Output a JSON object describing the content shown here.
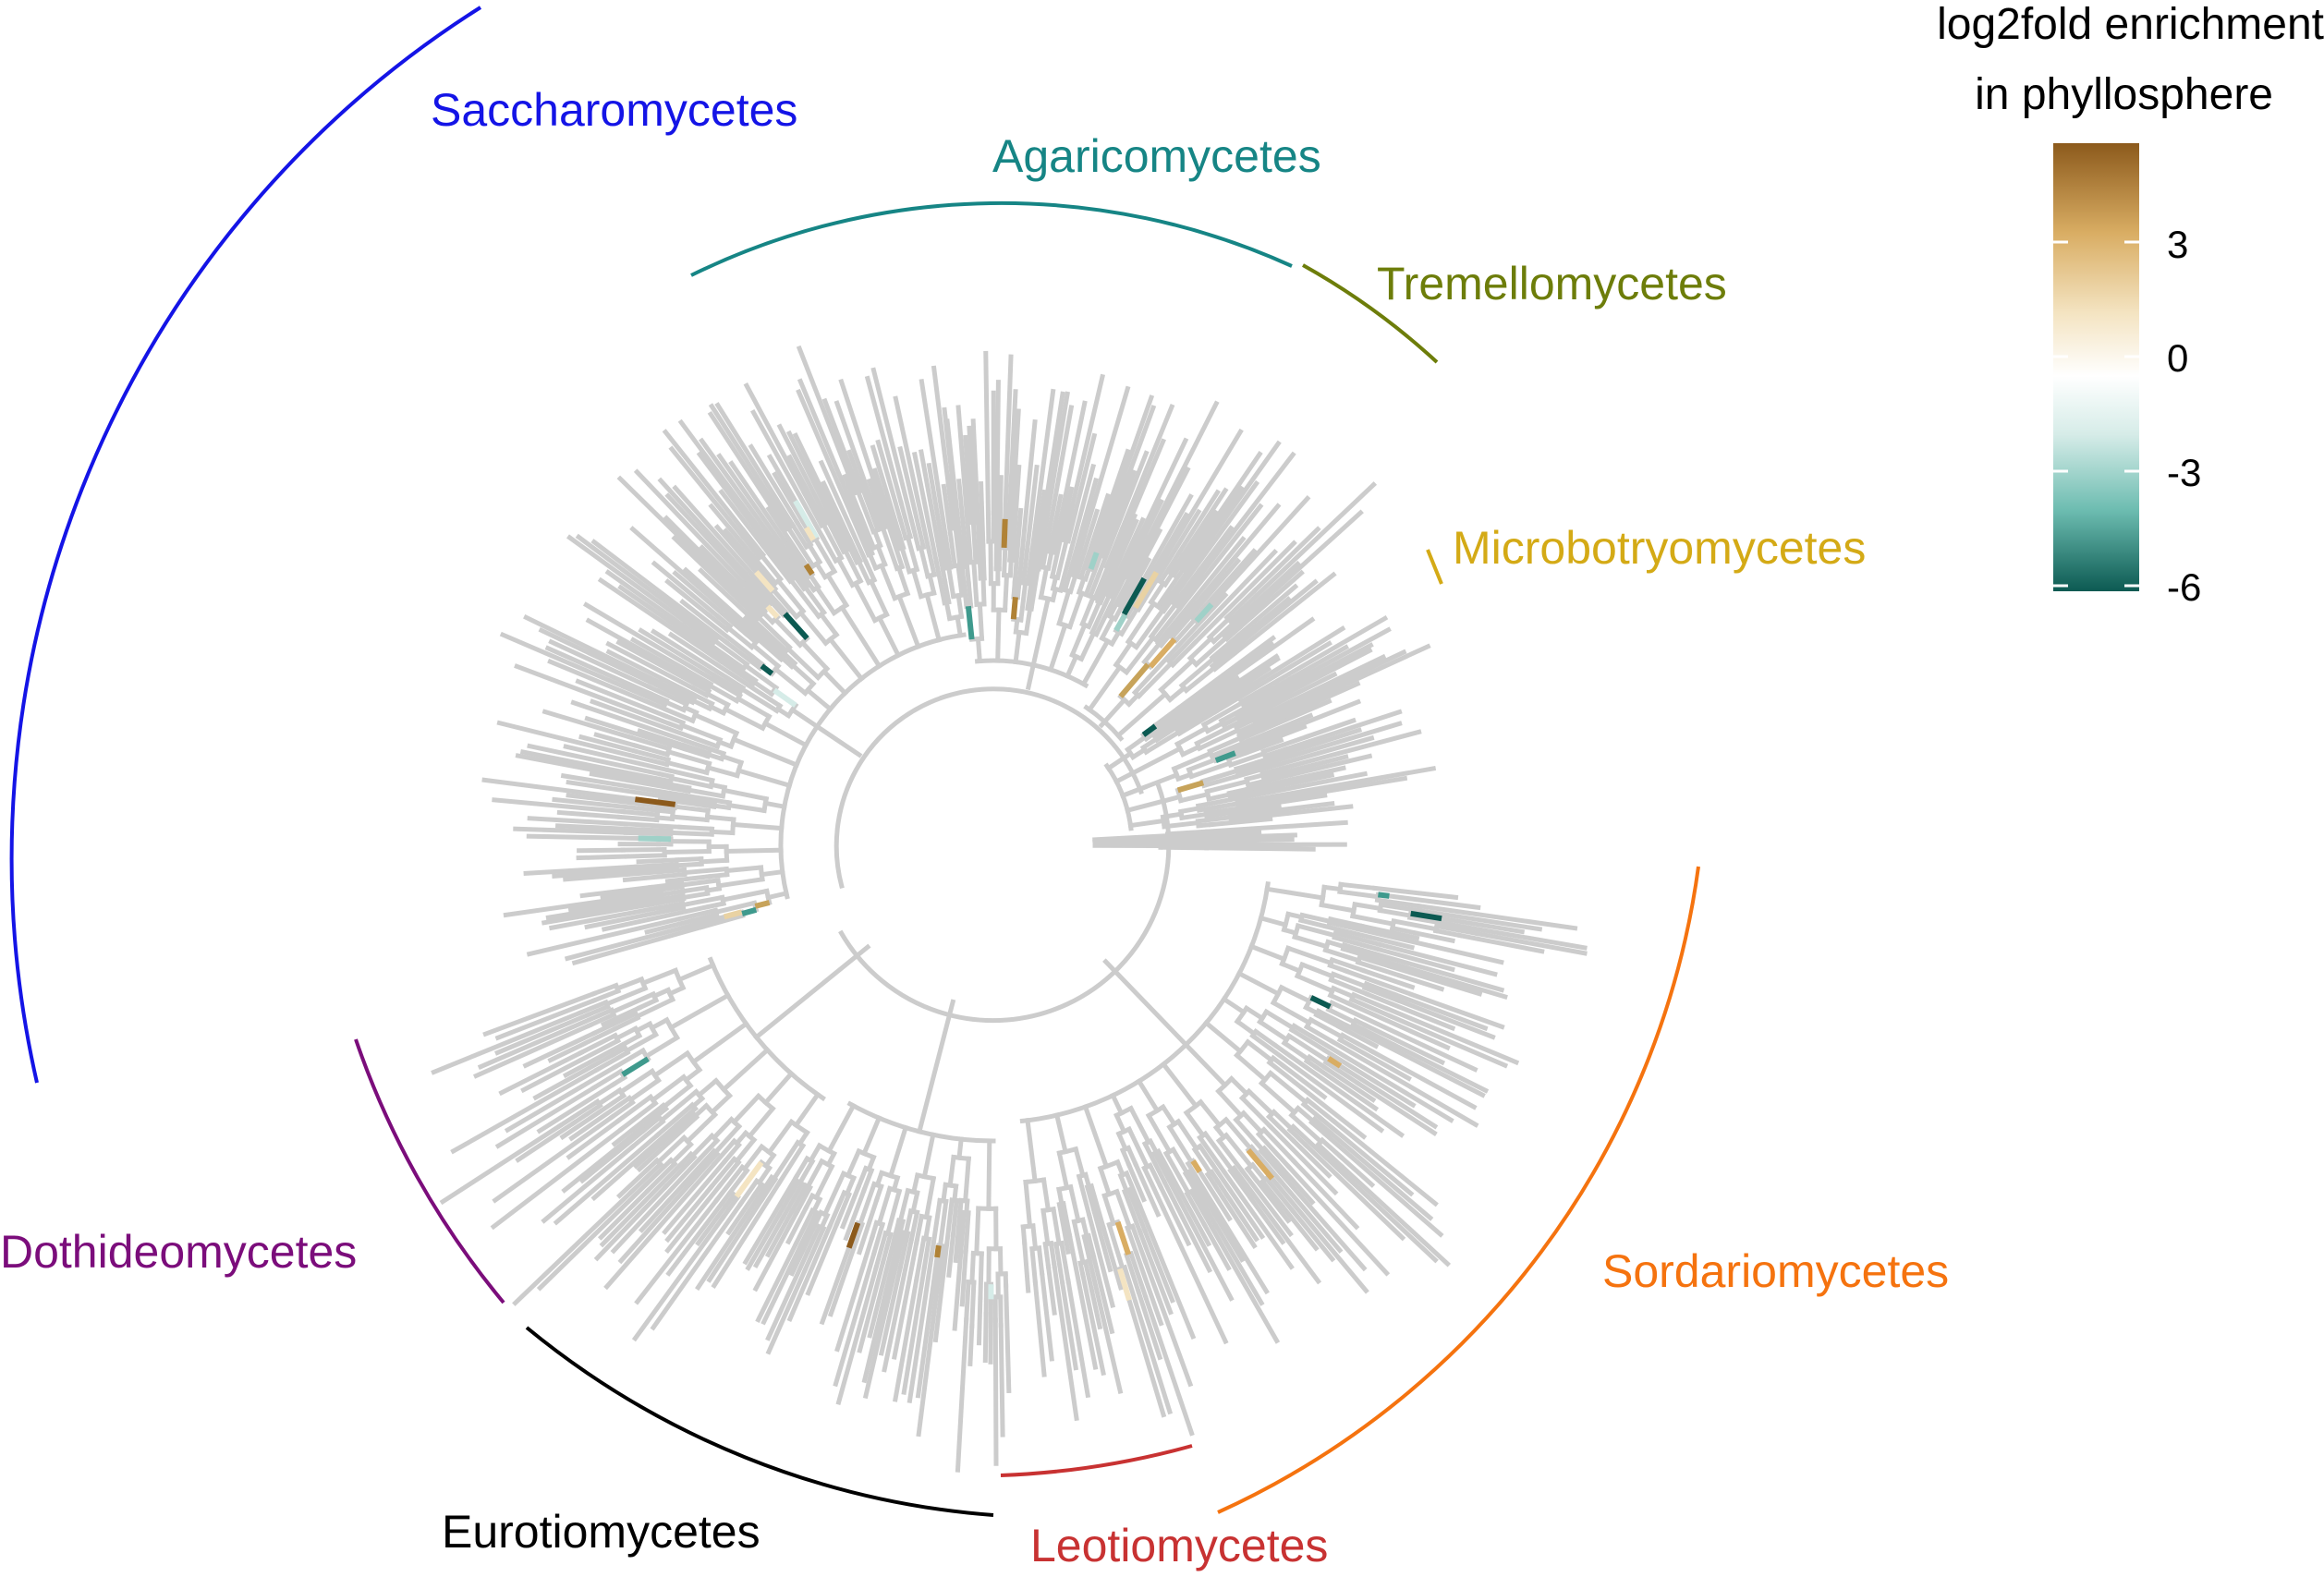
{
  "legend": {
    "title_line1": "log2fold enrichment",
    "title_line2": "in phyllosphere",
    "ticks": [
      "3",
      "0",
      "-3",
      "-6"
    ],
    "gradient_colors": [
      "#8c5a1c",
      "#d9ad63",
      "#f4e4c2",
      "#ffffff",
      "#d6ece8",
      "#6cbcb0",
      "#0c5a52"
    ]
  },
  "tree": {
    "branch_color": "#cccccc"
  },
  "clades": [
    {
      "id": "saccharomycetes",
      "label": "Saccharomycetes",
      "color": "#1414e6"
    },
    {
      "id": "agaricomycetes",
      "label": "Agaricomycetes",
      "color": "#168585"
    },
    {
      "id": "tremellomycetes",
      "label": "Tremellomycetes",
      "color": "#6d7d0a"
    },
    {
      "id": "microbotryomycetes",
      "label": "Microbotryomycetes",
      "color": "#d4aa16"
    },
    {
      "id": "sordariomycetes",
      "label": "Sordariomycetes",
      "color": "#f5730f"
    },
    {
      "id": "leotiomycetes",
      "label": "Leotiomycetes",
      "color": "#c83232"
    },
    {
      "id": "eurotiomycetes",
      "label": "Eurotiomycetes",
      "color": "#000000"
    },
    {
      "id": "dothideomycetes",
      "label": "Dothideomycetes",
      "color": "#7b0d7b"
    }
  ]
}
